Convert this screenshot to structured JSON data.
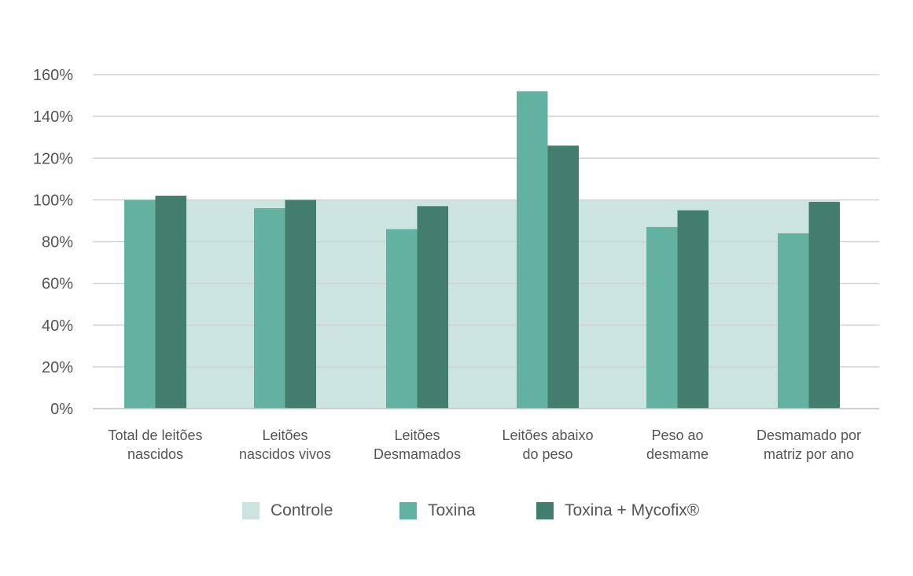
{
  "chart_data": {
    "type": "bar",
    "categories": [
      [
        "Total de leitões",
        "nascidos"
      ],
      [
        "Leitões",
        "nascidos vivos"
      ],
      [
        "Leitões",
        "Desmamados"
      ],
      [
        "Leitões abaixo",
        "do peso"
      ],
      [
        "Peso ao",
        "desmame"
      ],
      [
        "Desmamado por",
        "matriz por ano"
      ]
    ],
    "series": [
      {
        "name": "Controle",
        "values": [
          100,
          100,
          100,
          100,
          100,
          100
        ],
        "color": "#cbe4df",
        "style": "background-band"
      },
      {
        "name": "Toxina",
        "values": [
          100,
          96,
          86,
          152,
          87,
          84
        ],
        "color": "#63b1a0"
      },
      {
        "name": "Toxina + Mycofix®",
        "values": [
          102,
          100,
          97,
          126,
          95,
          99
        ],
        "color": "#427d6e"
      }
    ],
    "yticks": [
      "0%",
      "20%",
      "40%",
      "60%",
      "80%",
      "100%",
      "120%",
      "140%",
      "160%"
    ],
    "ylim": [
      0,
      160
    ],
    "grid": true,
    "legend_position": "bottom",
    "title": "",
    "xlabel": "",
    "ylabel": ""
  }
}
